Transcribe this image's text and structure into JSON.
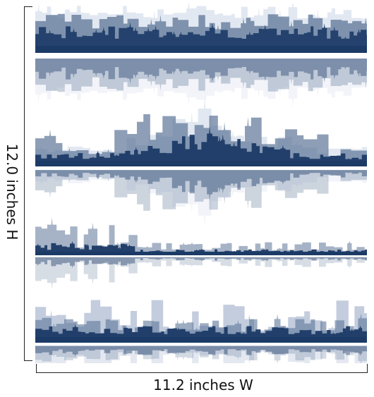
{
  "dimensions": {
    "height_label": "12.0 inches H",
    "width_label": "11.2 inches W"
  },
  "artwork": {
    "subject": "city skylines with reflections",
    "palette": {
      "dark": "#1b3a66",
      "mid": "#5c7597",
      "light": "#b8c4d8",
      "pale": "#dfe5ef"
    },
    "panel_count": 4
  }
}
